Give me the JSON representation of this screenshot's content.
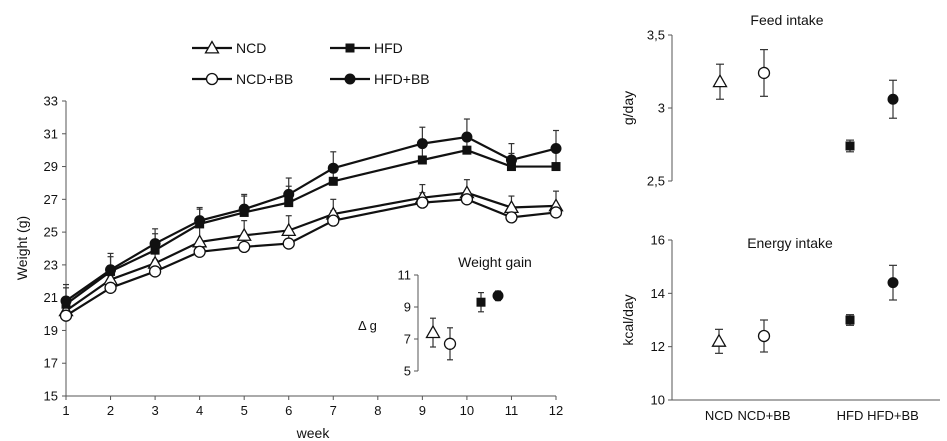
{
  "chart_data": [
    {
      "type": "line",
      "title": "",
      "xlabel": "week",
      "ylabel": "Weight (g)",
      "xlim": [
        1,
        12
      ],
      "ylim": [
        15,
        33
      ],
      "xticks": [
        1,
        2,
        3,
        4,
        5,
        6,
        7,
        8,
        9,
        10,
        11,
        12
      ],
      "yticks": [
        15,
        17,
        19,
        21,
        23,
        25,
        27,
        29,
        31,
        33
      ],
      "legend_position": "top",
      "series": [
        {
          "name": "NCD",
          "marker": "triangle-open",
          "x": [
            1,
            2,
            3,
            4,
            5,
            6,
            7,
            9,
            10,
            11,
            12
          ],
          "y": [
            20.2,
            22.1,
            23.1,
            24.4,
            24.8,
            25.1,
            26.1,
            27.1,
            27.4,
            26.5,
            26.6
          ],
          "err": [
            0.8,
            0.8,
            0.8,
            0.9,
            0.9,
            0.9,
            0.9,
            0.8,
            0.8,
            0.7,
            0.9
          ]
        },
        {
          "name": "HFD",
          "marker": "square-filled",
          "x": [
            1,
            2,
            3,
            4,
            5,
            6,
            7,
            9,
            10,
            11,
            12
          ],
          "y": [
            20.6,
            22.6,
            23.9,
            25.5,
            26.2,
            26.8,
            28.1,
            29.4,
            30.0,
            29.0,
            29.0
          ],
          "err": [
            1.0,
            0.9,
            1.0,
            0.9,
            1.0,
            1.0,
            1.0,
            0.9,
            0.8,
            0.8,
            1.0
          ]
        },
        {
          "name": "NCD+BB",
          "marker": "circle-open",
          "x": [
            1,
            2,
            3,
            4,
            5,
            6,
            7,
            9,
            10,
            11,
            12
          ],
          "y": [
            19.9,
            21.6,
            22.6,
            23.8,
            24.1,
            24.3,
            25.7,
            26.8,
            27.0,
            25.9,
            26.2
          ],
          "err": [
            0.8,
            0.7,
            0.7,
            0.6,
            0.6,
            0.6,
            0.6,
            0.6,
            0.5,
            0.5,
            0.5
          ]
        },
        {
          "name": "HFD+BB",
          "marker": "circle-filled",
          "x": [
            1,
            2,
            3,
            4,
            5,
            6,
            7,
            9,
            10,
            11,
            12
          ],
          "y": [
            20.8,
            22.7,
            24.3,
            25.7,
            26.4,
            27.3,
            28.9,
            30.4,
            30.8,
            29.4,
            30.1
          ],
          "err": [
            1.0,
            1.0,
            0.9,
            0.8,
            0.9,
            1.0,
            1.0,
            1.0,
            1.1,
            1.0,
            1.1
          ]
        }
      ]
    },
    {
      "type": "scatter",
      "title": "Weight gain",
      "ylabel": "Δ g",
      "ylim": [
        5,
        11
      ],
      "yticks": [
        5,
        7,
        9,
        11
      ],
      "categories": [
        "NCD",
        "NCD+BB",
        "HFD",
        "HFD+BB"
      ],
      "markers": [
        "triangle-open",
        "circle-open",
        "square-filled",
        "circle-filled"
      ],
      "values": [
        7.4,
        6.7,
        9.3,
        9.7
      ],
      "err": [
        0.9,
        1.0,
        0.6,
        0.3
      ]
    },
    {
      "type": "scatter",
      "title": "Feed intake",
      "ylabel": "g/day",
      "ylim": [
        2.5,
        3.5
      ],
      "yticks": [
        2.5,
        3,
        3.5
      ],
      "ytick_labels": [
        "2,5",
        "3",
        "3,5"
      ],
      "categories": [
        "NCD",
        "NCD+BB",
        "HFD",
        "HFD+BB"
      ],
      "markers": [
        "triangle-open",
        "circle-open",
        "square-filled",
        "circle-filled"
      ],
      "values": [
        3.18,
        3.24,
        2.74,
        3.06
      ],
      "err": [
        0.12,
        0.16,
        0.04,
        0.13
      ]
    },
    {
      "type": "scatter",
      "title": "Energy intake",
      "ylabel": "kcal/day",
      "ylim": [
        10,
        16
      ],
      "yticks": [
        10,
        12,
        14,
        16
      ],
      "categories": [
        "NCD",
        "NCD+BB",
        "HFD",
        "HFD+BB"
      ],
      "markers": [
        "triangle-open",
        "circle-open",
        "square-filled",
        "circle-filled"
      ],
      "values": [
        12.2,
        12.4,
        13.0,
        14.4
      ],
      "err": [
        0.45,
        0.6,
        0.2,
        0.65
      ]
    }
  ]
}
